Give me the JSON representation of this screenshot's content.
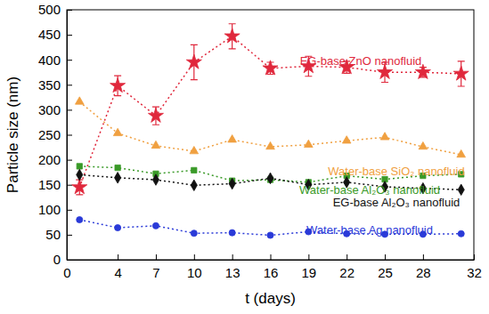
{
  "chart_data": {
    "type": "line",
    "x_label": "t (days)",
    "y_label": "Particle size (nm)",
    "x": [
      1,
      4,
      7,
      10,
      13,
      16,
      19,
      22,
      25,
      28,
      31
    ],
    "xlim": [
      0,
      32
    ],
    "xticks": [
      0,
      4,
      7,
      10,
      13,
      16,
      19,
      22,
      25,
      28,
      32
    ],
    "ylim": [
      0,
      500
    ],
    "yticks": [
      0,
      50,
      100,
      150,
      200,
      250,
      300,
      350,
      400,
      450,
      500
    ],
    "grid": false,
    "line_style": "dotted",
    "series": [
      {
        "name": "EG-base ZnO nanofluid",
        "color": "#e0283c",
        "marker": "star",
        "values": [
          145,
          348,
          288,
          395,
          447,
          383,
          387,
          385,
          375,
          375,
          372
        ],
        "errors": [
          15,
          20,
          18,
          35,
          25,
          12,
          20,
          12,
          20,
          10,
          25
        ]
      },
      {
        "name": "Water-base SiO₂ nanofluid",
        "color": "#f0a040",
        "marker": "triangle",
        "values": [
          316,
          253,
          228,
          217,
          240,
          226,
          230,
          238,
          245,
          226,
          210
        ]
      },
      {
        "name": "Water-base Al₂O₃ nanofluid",
        "color": "#3a9a28",
        "marker": "square",
        "values": [
          187,
          184,
          172,
          179,
          158,
          160,
          155,
          168,
          161,
          168,
          171
        ]
      },
      {
        "name": "EG-base Al₂O₃ nanofluid",
        "color": "#111111",
        "marker": "diamond",
        "values": [
          170,
          164,
          160,
          149,
          152,
          163,
          150,
          155,
          146,
          143,
          140
        ]
      },
      {
        "name": "Water-base Ag nanofluid",
        "color": "#2a3ad8",
        "marker": "circle",
        "values": [
          80,
          64,
          68,
          53,
          54,
          49,
          56,
          52,
          51,
          51,
          52
        ]
      }
    ]
  }
}
